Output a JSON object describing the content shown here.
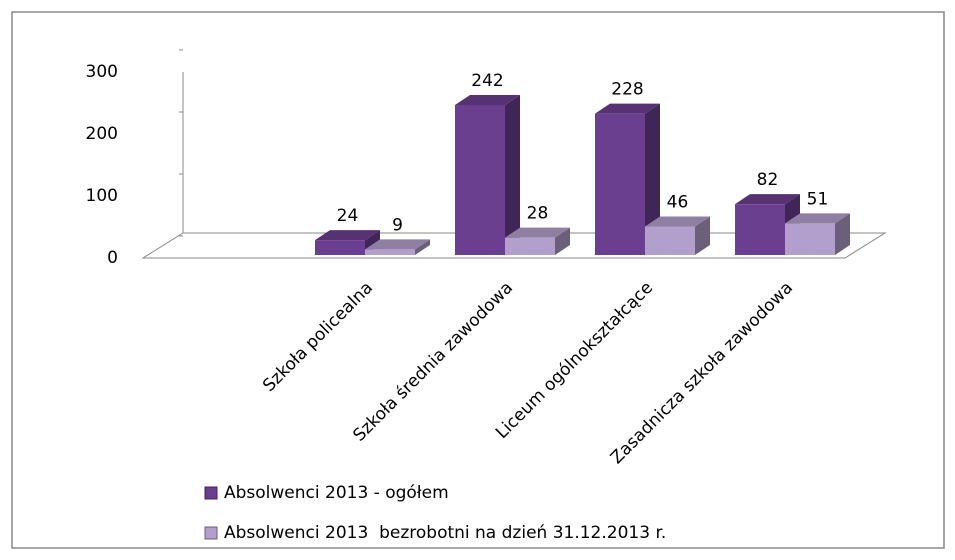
{
  "chart_data": {
    "type": "bar3d",
    "categories": [
      "Szkoła policealna",
      "Szkoła średnia zawodowa",
      "Liceum ogólnokształcące",
      "Zasadnicza szkoła zawodowa"
    ],
    "series": [
      {
        "name": "Absolwenci 2013 - ogółem",
        "color": "#6b3f8f",
        "values": [
          24,
          242,
          228,
          82
        ]
      },
      {
        "name": "Absolwenci 2013  bezrobotni na dzień 31.12.2013 r.",
        "color": "#b39fcc",
        "values": [
          9,
          28,
          46,
          51
        ]
      }
    ],
    "ylim": [
      0,
      300
    ],
    "yticks": [
      0,
      100,
      200,
      300
    ],
    "grid": false,
    "legend": "bottom"
  }
}
